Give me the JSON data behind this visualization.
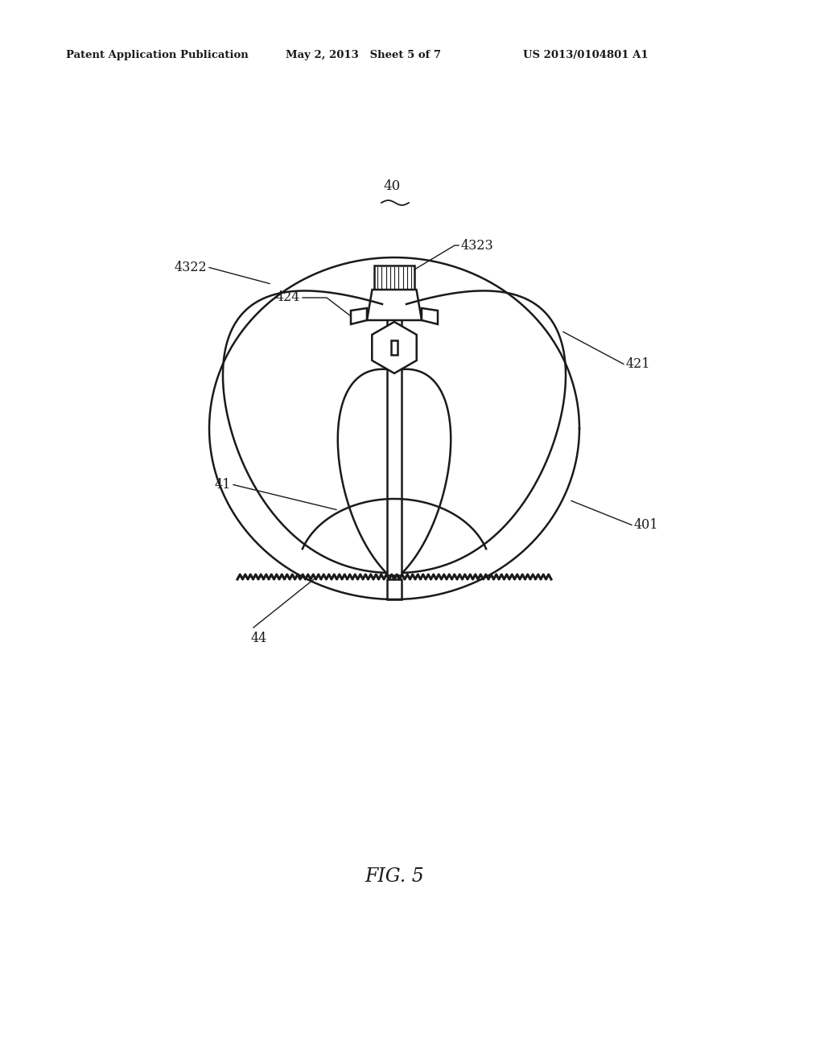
{
  "bg_color": "#ffffff",
  "line_color": "#1a1a1a",
  "header_left": "Patent Application Publication",
  "header_mid": "May 2, 2013   Sheet 5 of 7",
  "header_right": "US 2013/0104801 A1",
  "fig_label": "FIG. 5",
  "label_40": "40",
  "label_401": "401",
  "label_41": "41",
  "label_4322": "4322",
  "label_4323": "4323",
  "label_424": "424",
  "label_421": "421",
  "label_44": "44"
}
